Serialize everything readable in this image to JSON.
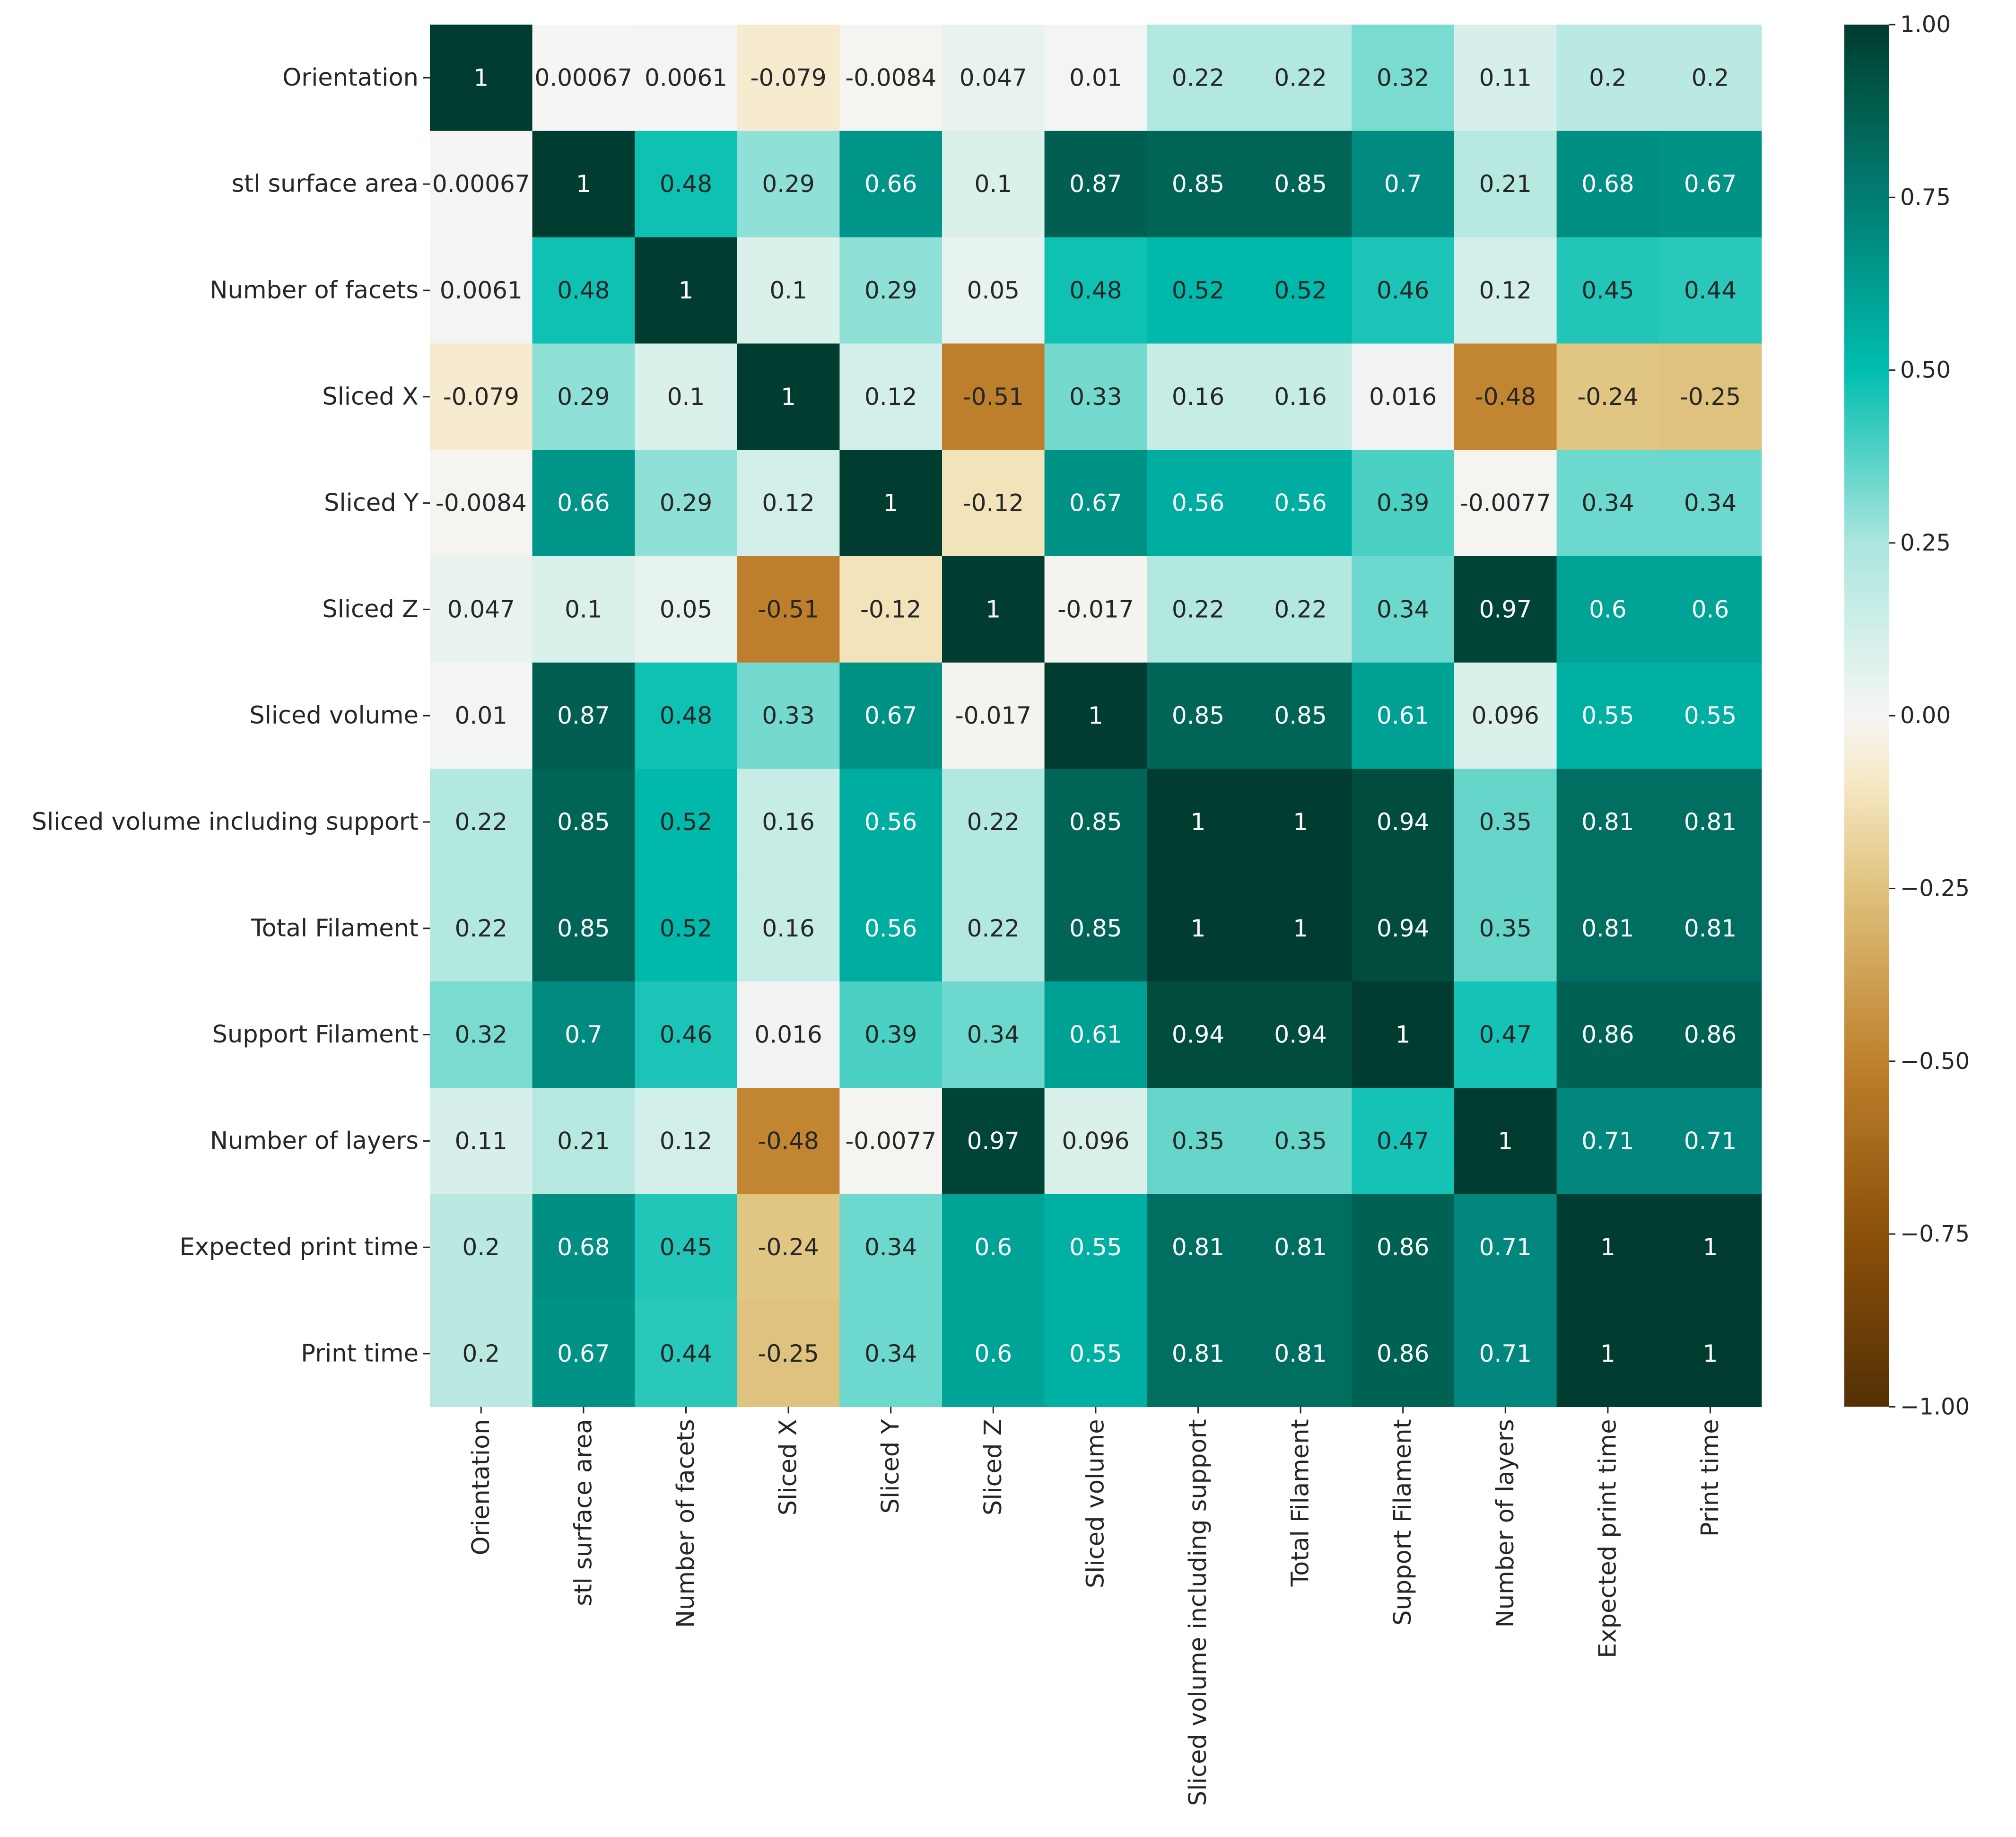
{
  "chart_data": {
    "type": "heatmap",
    "title": "",
    "xlabel": "",
    "ylabel": "",
    "labels": [
      "Orientation",
      "stl surface area",
      "Number of facets",
      "Sliced X",
      "Sliced Y",
      "Sliced Z",
      "Sliced volume",
      "Sliced volume including support",
      "Total Filament",
      "Support Filament",
      "Number of layers",
      "Expected print time",
      "Print time"
    ],
    "values": [
      [
        1,
        0.00067,
        0.0061,
        -0.079,
        -0.0084,
        0.047,
        0.01,
        0.22,
        0.22,
        0.32,
        0.11,
        0.2,
        0.2
      ],
      [
        0.00067,
        1,
        0.48,
        0.29,
        0.66,
        0.1,
        0.87,
        0.85,
        0.85,
        0.7,
        0.21,
        0.68,
        0.67
      ],
      [
        0.0061,
        0.48,
        1,
        0.1,
        0.29,
        0.05,
        0.48,
        0.52,
        0.52,
        0.46,
        0.12,
        0.45,
        0.44
      ],
      [
        -0.079,
        0.29,
        0.1,
        1,
        0.12,
        -0.51,
        0.33,
        0.16,
        0.16,
        0.016,
        -0.48,
        -0.24,
        -0.25
      ],
      [
        -0.0084,
        0.66,
        0.29,
        0.12,
        1,
        -0.12,
        0.67,
        0.56,
        0.56,
        0.39,
        -0.0077,
        0.34,
        0.34
      ],
      [
        0.047,
        0.1,
        0.05,
        -0.51,
        -0.12,
        1,
        -0.017,
        0.22,
        0.22,
        0.34,
        0.97,
        0.6,
        0.6
      ],
      [
        0.01,
        0.87,
        0.48,
        0.33,
        0.67,
        -0.017,
        1,
        0.85,
        0.85,
        0.61,
        0.096,
        0.55,
        0.55
      ],
      [
        0.22,
        0.85,
        0.52,
        0.16,
        0.56,
        0.22,
        0.85,
        1,
        1,
        0.94,
        0.35,
        0.81,
        0.81
      ],
      [
        0.22,
        0.85,
        0.52,
        0.16,
        0.56,
        0.22,
        0.85,
        1,
        1,
        0.94,
        0.35,
        0.81,
        0.81
      ],
      [
        0.32,
        0.7,
        0.46,
        0.016,
        0.39,
        0.34,
        0.61,
        0.94,
        0.94,
        1,
        0.47,
        0.86,
        0.86
      ],
      [
        0.11,
        0.21,
        0.12,
        -0.48,
        -0.0077,
        0.97,
        0.096,
        0.35,
        0.35,
        0.47,
        1,
        0.71,
        0.71
      ],
      [
        0.2,
        0.68,
        0.45,
        -0.24,
        0.34,
        0.6,
        0.55,
        0.81,
        0.81,
        0.86,
        0.71,
        1,
        1
      ],
      [
        0.2,
        0.67,
        0.44,
        -0.25,
        0.34,
        0.6,
        0.55,
        0.81,
        0.81,
        0.86,
        0.71,
        1,
        1
      ]
    ],
    "colormap": "BrBG",
    "vmin": -1.0,
    "vmax": 1.0,
    "colorbar_ticks": [
      1.0,
      0.75,
      0.5,
      0.25,
      0.0,
      -0.25,
      -0.5,
      -0.75,
      -1.0
    ],
    "colorbar_tick_labels": [
      "1.00",
      "0.75",
      "0.50",
      "0.25",
      "0.00",
      "−0.25",
      "−0.50",
      "−0.75",
      "−1.00"
    ],
    "annot": true
  }
}
